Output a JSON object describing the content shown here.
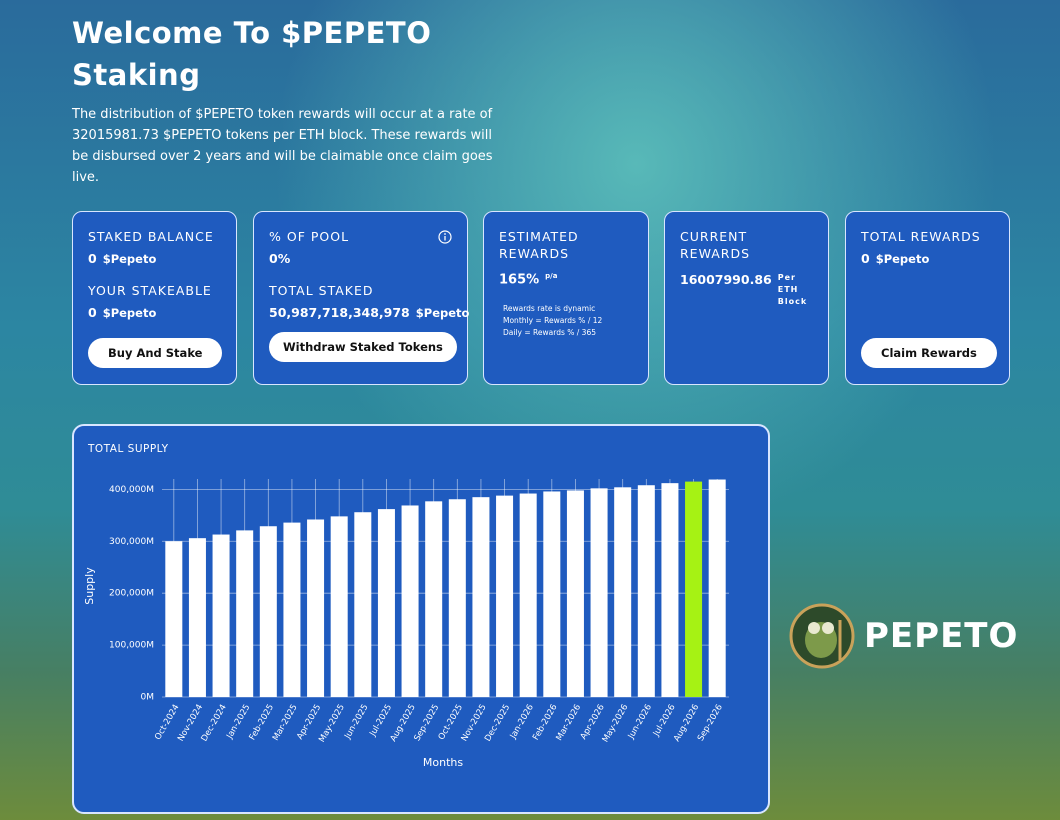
{
  "header": {
    "title_line1": "Welcome To $PEPETO",
    "title_line2": "Staking",
    "description": "The distribution of $PEPETO token rewards will occur at a rate of 32015981.73 $PEPETO tokens per ETH block. These rewards will be disbursed over 2 years and will be claimable once claim goes live."
  },
  "cards": [
    {
      "items": [
        {
          "label": "STAKED BALANCE",
          "value": "0",
          "unit": "$Pepeto"
        },
        {
          "label": "YOUR STAKEABLE",
          "value": "0",
          "unit": "$Pepeto"
        }
      ],
      "button": "Buy And Stake"
    },
    {
      "items": [
        {
          "label": "% OF POOL",
          "value": "0%"
        },
        {
          "label": "TOTAL STAKED",
          "value": "50,987,718,348,978",
          "unit": "$Pepeto"
        }
      ],
      "button": "Withdraw Staked Tokens"
    },
    {
      "items": [
        {
          "label": "ESTIMATED REWARDS",
          "value": "165%",
          "unit": "p/a"
        }
      ],
      "notes": [
        "Rewards rate is dynamic",
        "Monthly = Rewards % / 12",
        "Daily = Rewards % / 365"
      ]
    },
    {
      "items": [
        {
          "label": "CURRENT REWARDS",
          "value": "16007990.86",
          "unit": "Per ETH Block"
        }
      ]
    },
    {
      "items": [
        {
          "label": "TOTAL REWARDS",
          "value": "0",
          "unit": "$Pepeto"
        }
      ],
      "button": "Claim Rewards"
    }
  ],
  "chart_data": {
    "type": "bar",
    "title": "TOTAL SUPPLY",
    "x_label": "Months",
    "y_label": "Supply",
    "categories": [
      "Oct-2024",
      "Nov-2024",
      "Dec-2024",
      "Jan-2025",
      "Feb-2025",
      "Mar-2025",
      "Apr-2025",
      "May-2025",
      "Jun-2025",
      "Jul-2025",
      "Aug-2025",
      "Sep-2025",
      "Oct-2025",
      "Nov-2025",
      "Dec-2025",
      "Jan-2026",
      "Feb-2026",
      "Mar-2026",
      "Apr-2026",
      "May-2026",
      "Jun-2026",
      "Jul-2026",
      "Aug-2026",
      "Sep-2026"
    ],
    "values": [
      300000,
      306000,
      313000,
      321000,
      329000,
      336000,
      342000,
      348000,
      356000,
      362000,
      369000,
      377000,
      381000,
      385000,
      388000,
      392000,
      396000,
      398000,
      402000,
      404000,
      408000,
      412000,
      415000,
      419000
    ],
    "colors": [
      "#ffffff",
      "#ffffff",
      "#ffffff",
      "#ffffff",
      "#ffffff",
      "#ffffff",
      "#ffffff",
      "#ffffff",
      "#ffffff",
      "#ffffff",
      "#ffffff",
      "#ffffff",
      "#ffffff",
      "#ffffff",
      "#ffffff",
      "#ffffff",
      "#ffffff",
      "#ffffff",
      "#ffffff",
      "#ffffff",
      "#ffffff",
      "#ffffff",
      "#a6f214",
      "#ffffff"
    ],
    "ylim": [
      0,
      420000
    ],
    "yticks": [
      {
        "value": 0,
        "label": "0M"
      },
      {
        "value": 100000,
        "label": "100,000M"
      },
      {
        "value": 200000,
        "label": "200,000M"
      },
      {
        "value": 300000,
        "label": "300,000M"
      },
      {
        "value": 400000,
        "label": "400,000M"
      }
    ],
    "grid": true
  },
  "brand": {
    "name": "PEPETO"
  }
}
